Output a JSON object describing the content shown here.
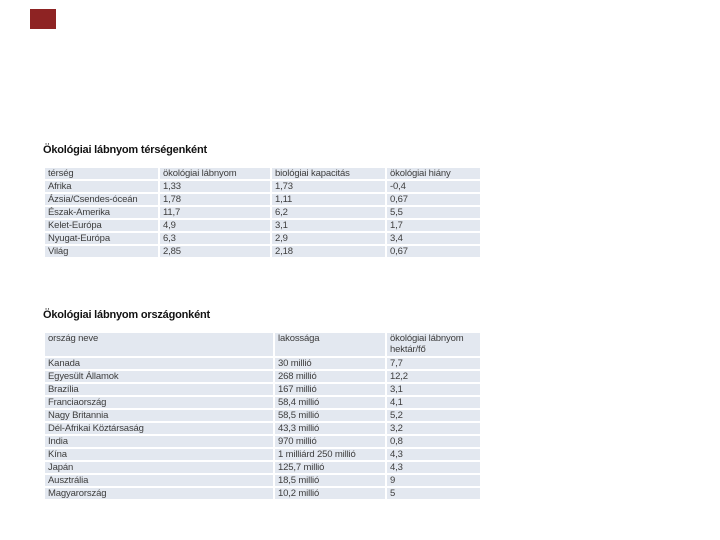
{
  "page": {
    "background": "#ffffff"
  },
  "marker": {
    "name": "red-rectangle-marker",
    "color": "#8e2323"
  },
  "colors": {
    "cell_background": "#e3e8f0",
    "cell_text": "#3d3d3d",
    "title_text": "#121212"
  },
  "sections": [
    {
      "title": "Ökológiai lábnyom térségenként",
      "table": {
        "headers": [
          "térség",
          "ökológiai lábnyom",
          "biológiai kapacitás",
          "ökológiai hiány"
        ],
        "rows": [
          [
            "Afrika",
            "1,33",
            "1,73",
            "-0,4"
          ],
          [
            "Ázsia/Csendes-óceán",
            "1,78",
            "1,11",
            "0,67"
          ],
          [
            "Észak-Amerika",
            "11,7",
            "6,2",
            "5,5"
          ],
          [
            "Kelet-Európa",
            "4,9",
            "3,1",
            "1,7"
          ],
          [
            "Nyugat-Európa",
            "6,3",
            "2,9",
            "3,4"
          ],
          [
            "Világ",
            "2,85",
            "2,18",
            "0,67"
          ]
        ]
      }
    },
    {
      "title": "Ökológiai lábnyom országonként",
      "table": {
        "headers": [
          "ország neve",
          "lakossága",
          "ökológiai lábnyom hektár/fő"
        ],
        "rows": [
          [
            "Kanada",
            "30 millió",
            "7,7"
          ],
          [
            "Egyesült Államok",
            "268 millió",
            "12,2"
          ],
          [
            "Brazília",
            "167 millió",
            "3,1"
          ],
          [
            "Franciaország",
            "58,4 millió",
            "4,1"
          ],
          [
            "Nagy Britannia",
            "58,5 millió",
            "5,2"
          ],
          [
            "Dél-Afrikai Köztársaság",
            "43,3 millió",
            "3,2"
          ],
          [
            "India",
            "970 millió",
            "0,8"
          ],
          [
            "Kína",
            "1 milliárd 250 millió",
            "4,3"
          ],
          [
            "Japán",
            "125,7 millió",
            "4,3"
          ],
          [
            "Ausztrália",
            "18,5 millió",
            "9"
          ],
          [
            "Magyarország",
            "10,2 millió",
            "5"
          ]
        ]
      }
    }
  ]
}
